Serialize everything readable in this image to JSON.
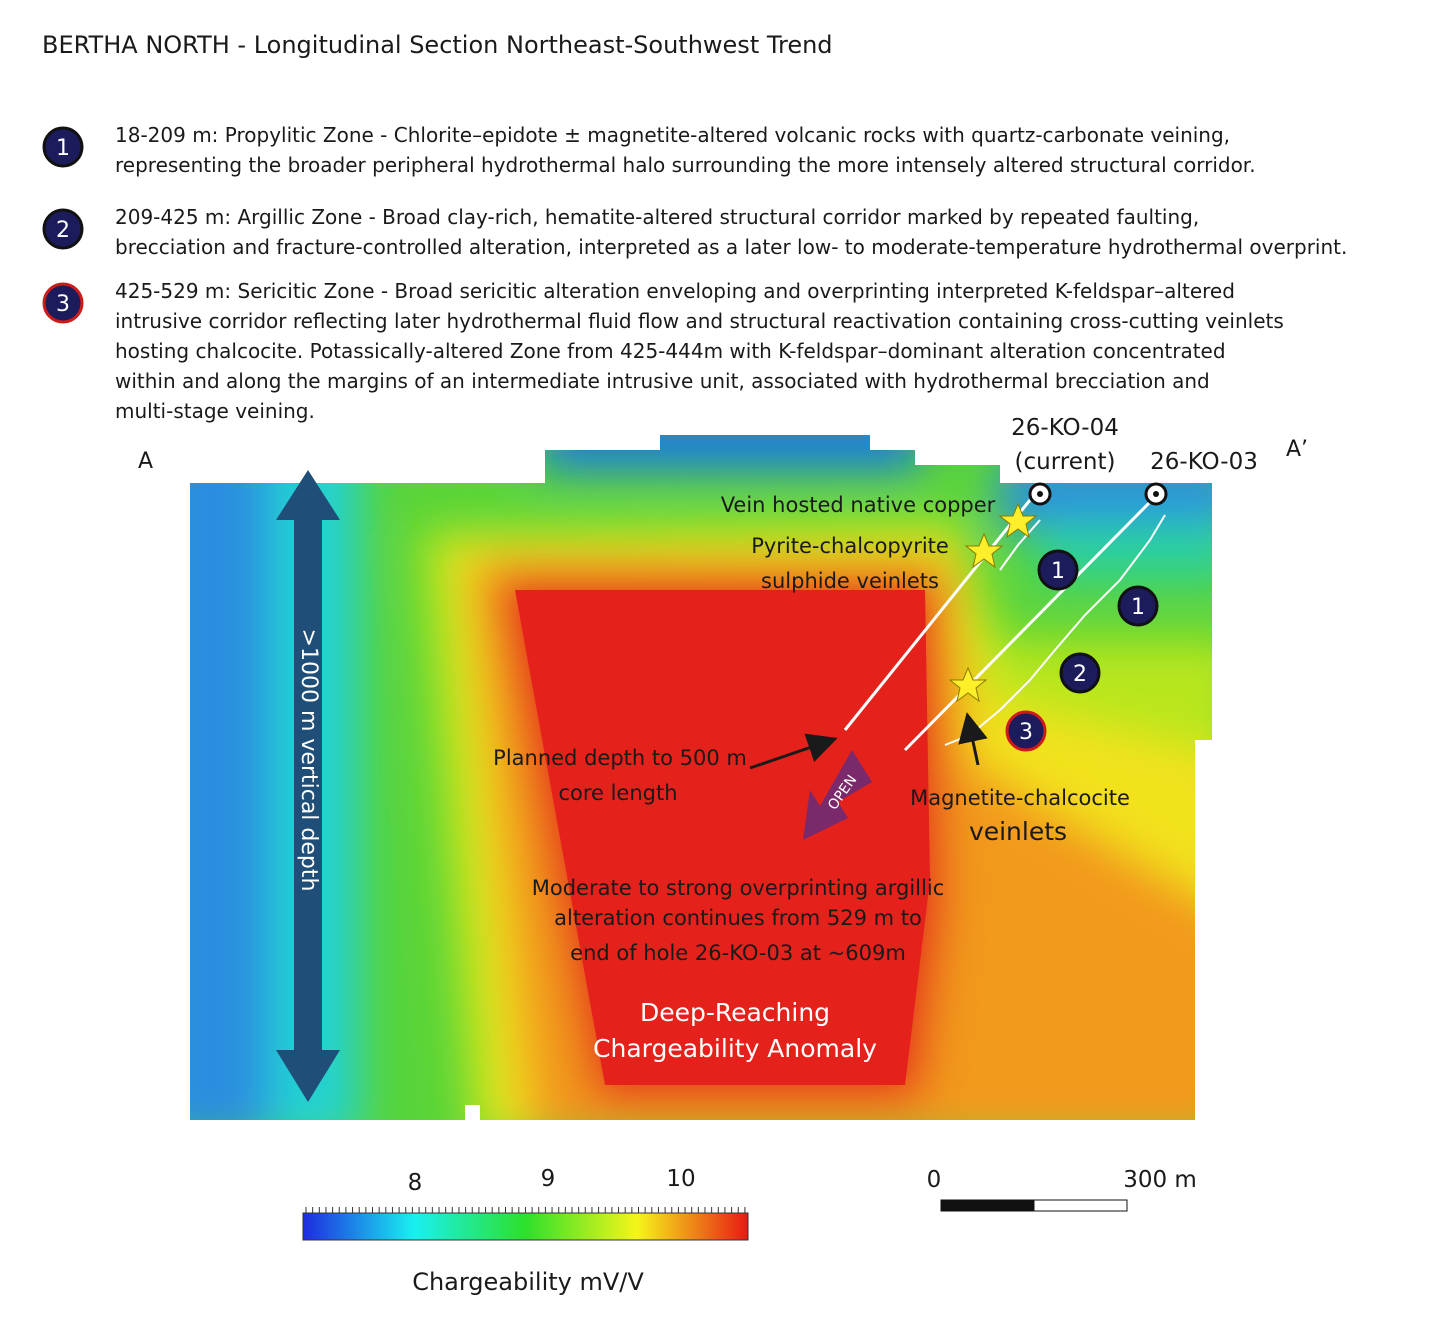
{
  "title": "BERTHA NORTH - Longitudinal Section Northeast-Southwest Trend",
  "legend": [
    {
      "number": "1",
      "lines": [
        "18-209 m: Propylitic Zone - Chlorite–epidote ± magnetite-altered volcanic rocks with quartz-carbonate veining,",
        "representing the broader peripheral hydrothermal halo surrounding the more intensely altered structural corridor."
      ]
    },
    {
      "number": "2",
      "lines": [
        "209-425 m: Argillic Zone - Broad clay-rich, hematite-altered structural corridor marked by repeated faulting,",
        "brecciation and fracture-controlled alteration, interpreted as a later low- to moderate-temperature hydrothermal overprint."
      ]
    },
    {
      "number": "3",
      "lines": [
        "425-529 m: Sericitic Zone - Broad sericitic alteration enveloping and overprinting interpreted K-feldspar–altered",
        "intrusive corridor reflecting later hydrothermal fluid flow and structural reactivation containing cross-cutting veinlets",
        "hosting chalcocite. Potassically-altered Zone from 425-444m with K-feldspar–dominant alteration concentrated",
        "within and along the margins of an intermediate intrusive unit, associated with hydrothermal brecciation and",
        "multi-stage veining."
      ]
    }
  ],
  "section": {
    "left_label": "A",
    "right_label": "A’",
    "depth_label": ">1000 m vertical depth",
    "holes": [
      {
        "name": "26-KO-04",
        "note": "(current)"
      },
      {
        "name": "26-KO-03"
      }
    ],
    "annotations": {
      "native_copper": "Vein hosted native copper",
      "pyrite": [
        "Pyrite-chalcopyrite",
        "sulphide veinlets"
      ],
      "planned": [
        "Planned depth to 500 m",
        "core length"
      ],
      "open": "OPEN",
      "magnetite": [
        "Magnetite-chalcocite",
        "veinlets"
      ],
      "argillic": [
        "Moderate to strong overprinting argillic",
        "alteration continues from 529 m to",
        "end of hole 26-KO-03 at ~609m"
      ],
      "anomaly": [
        "Deep-Reaching",
        "Chargeability Anomaly"
      ]
    },
    "zone_markers": [
      "1",
      "1",
      "2",
      "3"
    ]
  },
  "colorbar": {
    "ticks": [
      8,
      9,
      10
    ],
    "title": "Chargeability mV/V"
  },
  "scale_bar": {
    "ticks": [
      "0",
      "300 m"
    ]
  }
}
